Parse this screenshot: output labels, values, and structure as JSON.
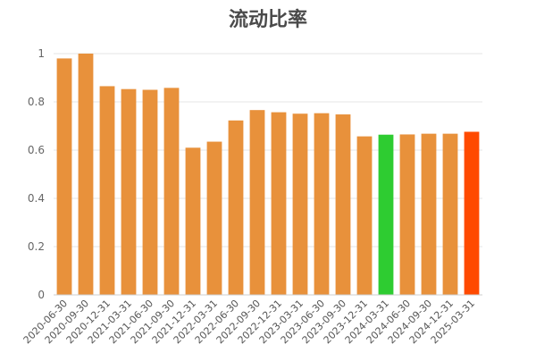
{
  "chart_data": {
    "type": "bar",
    "title": "流动比率",
    "xlabel": "",
    "ylabel": "",
    "ylim": [
      0,
      1
    ],
    "yticks": [
      0,
      0.2,
      0.4,
      0.6,
      0.8,
      1
    ],
    "ytick_labels": [
      "0",
      "0.2",
      "0.4",
      "0.6",
      "0.8",
      "1"
    ],
    "grid": true,
    "legend": "none",
    "default_color": "#e8913b",
    "highlight_colors": {
      "2024-03-31": "#2ecc31",
      "2025-03-31": "#ff4a00"
    },
    "categories": [
      "2020-06-30",
      "2020-09-30",
      "2020-12-31",
      "2021-03-31",
      "2021-06-30",
      "2021-09-30",
      "2021-12-31",
      "2022-03-31",
      "2022-06-30",
      "2022-09-30",
      "2022-12-31",
      "2023-03-31",
      "2023-06-30",
      "2023-09-30",
      "2023-12-31",
      "2024-03-31",
      "2024-06-30",
      "2024-09-30",
      "2024-12-31",
      "2025-03-31"
    ],
    "values": [
      0.98,
      1.0,
      0.865,
      0.853,
      0.85,
      0.858,
      0.61,
      0.635,
      0.723,
      0.766,
      0.757,
      0.751,
      0.753,
      0.748,
      0.657,
      0.664,
      0.665,
      0.668,
      0.668,
      0.676
    ]
  }
}
